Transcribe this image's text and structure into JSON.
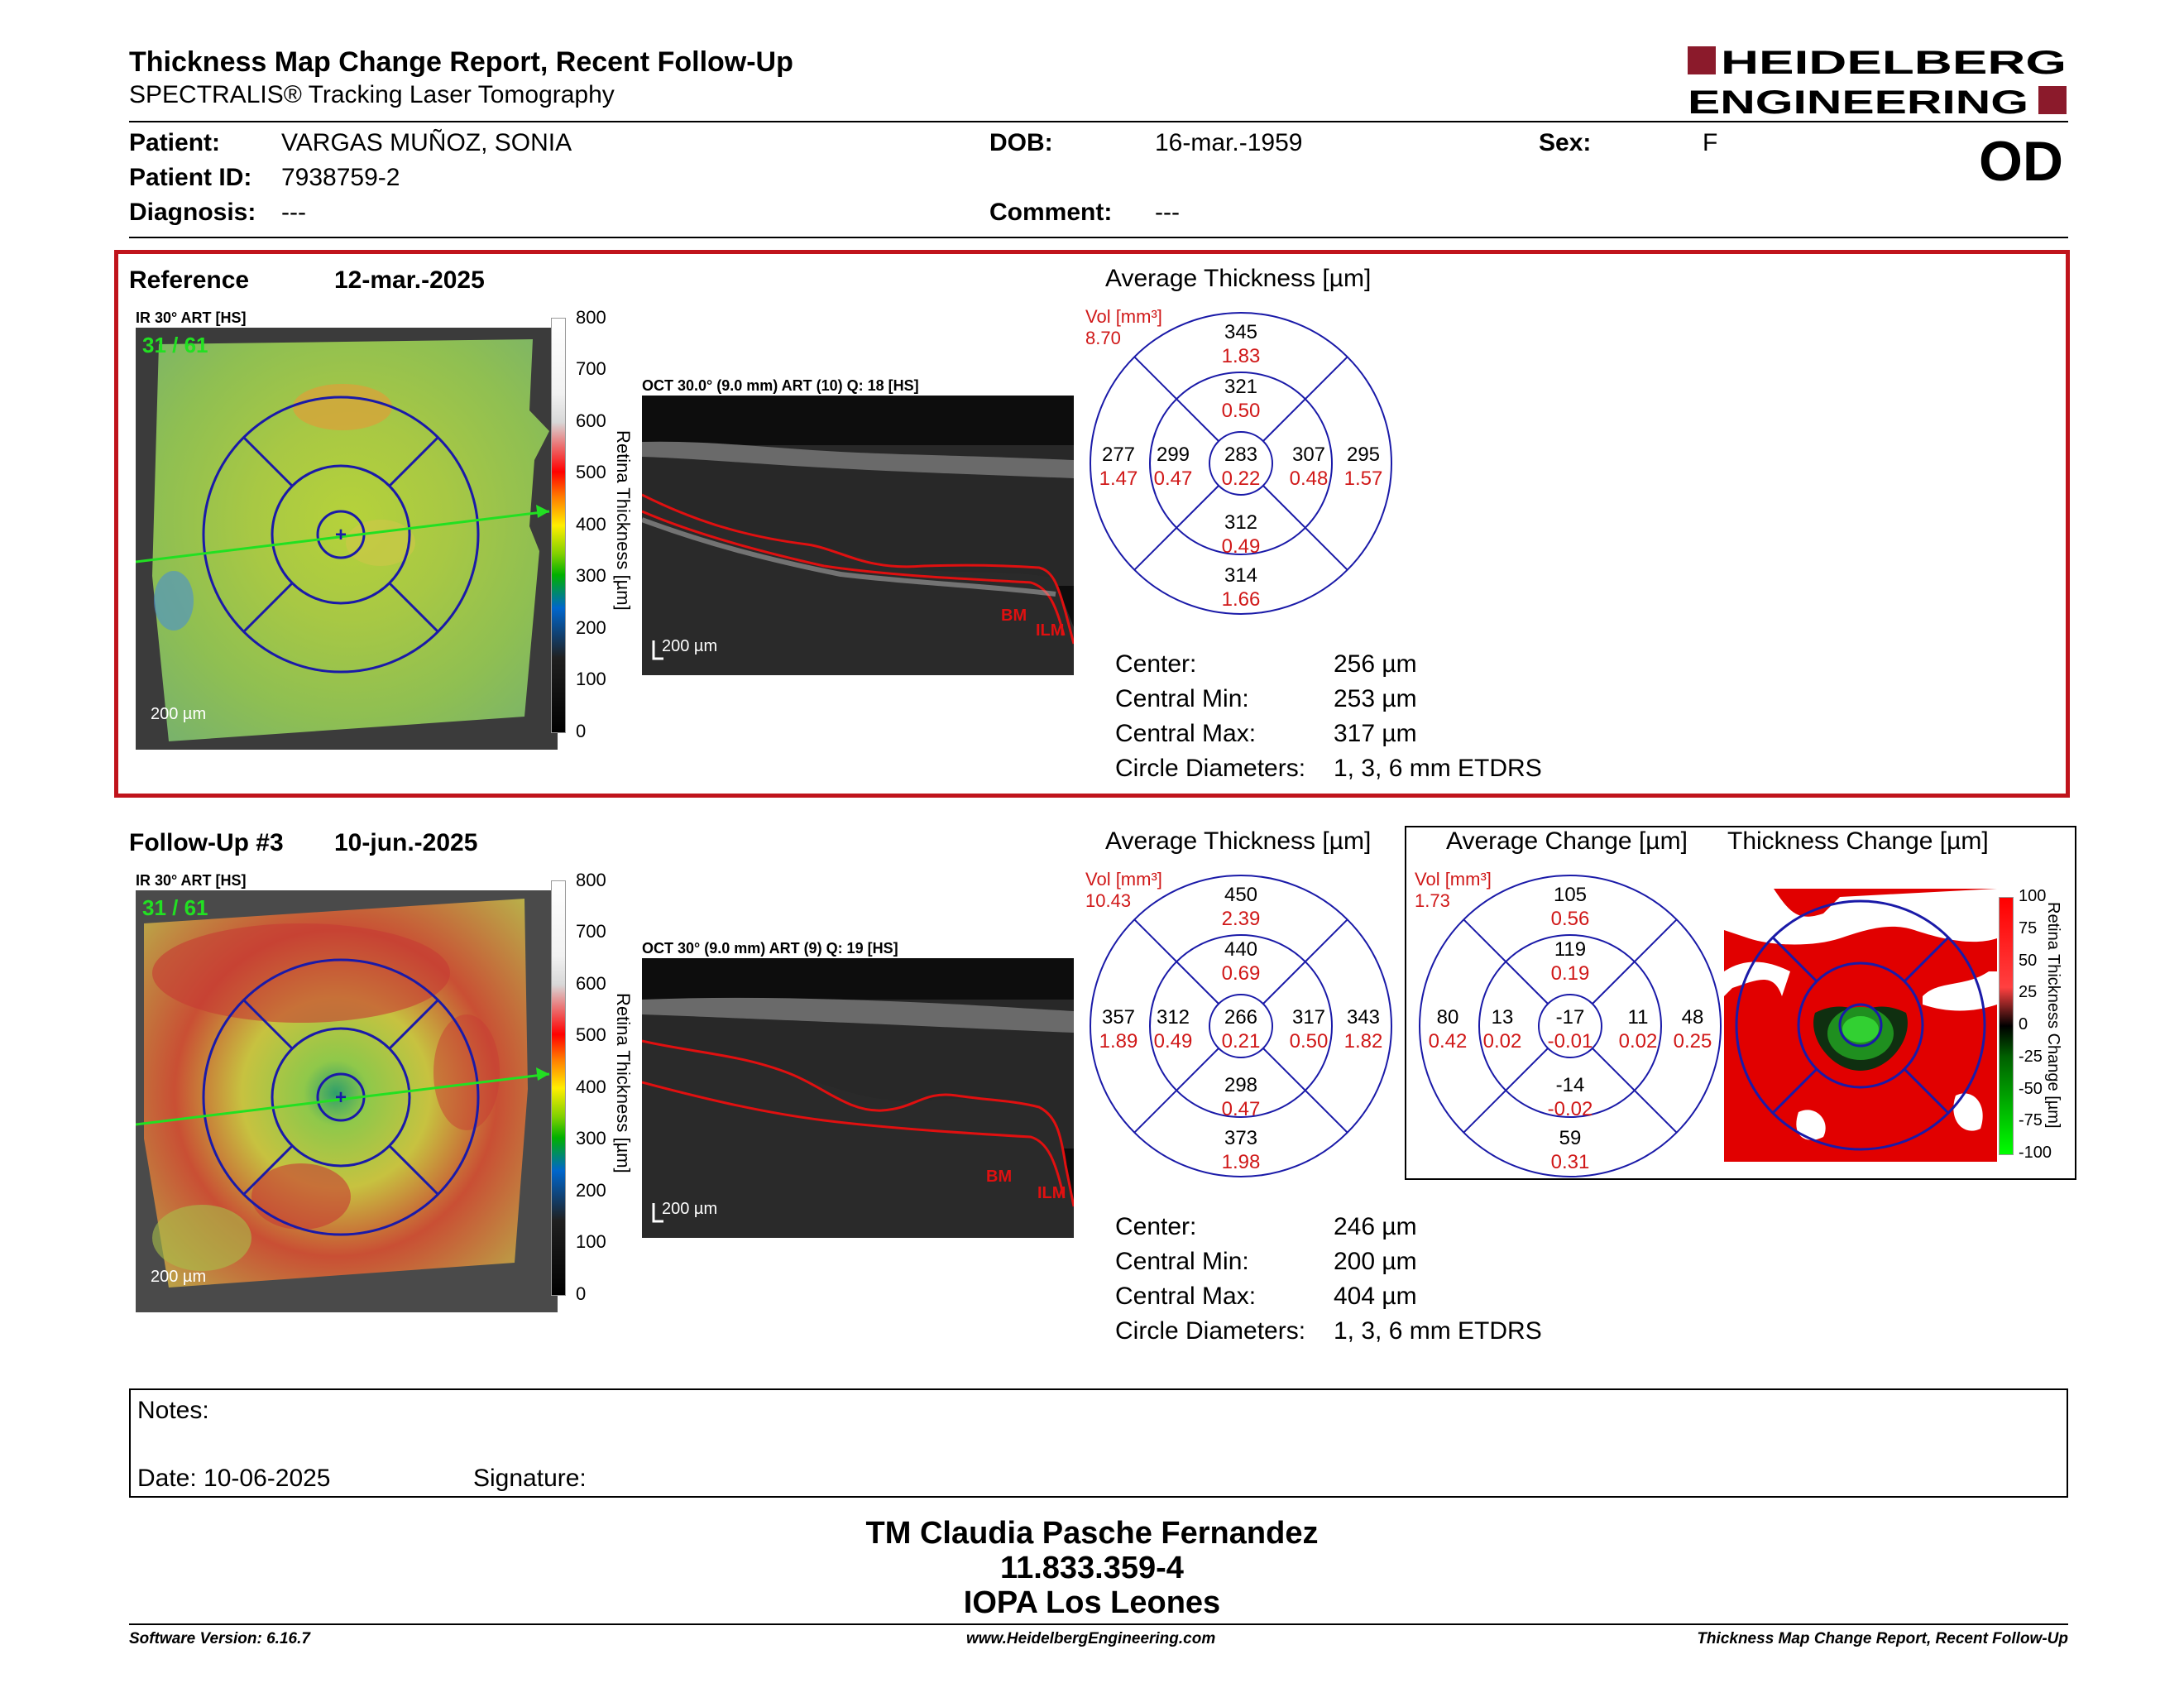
{
  "header": {
    "title": "Thickness Map Change Report, Recent Follow-Up",
    "subtitle": "SPECTRALIS® Tracking Laser Tomography",
    "logo_line1": "HEIDELBERG",
    "logo_line2": "ENGINEERING",
    "eye": "OD"
  },
  "patient": {
    "patient_label": "Patient:",
    "patient_value": "VARGAS MUÑOZ, SONIA",
    "id_label": "Patient ID:",
    "id_value": "7938759-2",
    "diagnosis_label": "Diagnosis:",
    "diagnosis_value": "---",
    "dob_label": "DOB:",
    "dob_value": "16-mar.-1959",
    "comment_label": "Comment:",
    "comment_value": "---",
    "sex_label": "Sex:",
    "sex_value": "F"
  },
  "reference": {
    "label": "Reference",
    "date": "12-mar.-2025",
    "ir_label": "IR 30° ART [HS]",
    "frame": "31 / 61",
    "scale": "200 µm",
    "oct_label": "OCT 30.0° (9.0 mm) ART (10) Q: 18 [HS]",
    "oct_scale": "200 µm",
    "bm": "BM",
    "ilm": "ILM",
    "colorbar_ticks": [
      "800",
      "700",
      "600",
      "500",
      "400",
      "300",
      "200",
      "100",
      "0"
    ],
    "colorbar_label": "Retina Thickness [µm]",
    "avg_title": "Average Thickness [µm]",
    "vol_label": "Vol [mm³]",
    "vol_value": "8.70",
    "etdrs": {
      "outer_sup": [
        "345",
        "1.83"
      ],
      "inner_sup": [
        "321",
        "0.50"
      ],
      "outer_temp": [
        "277",
        "1.47"
      ],
      "inner_temp": [
        "299",
        "0.47"
      ],
      "center": [
        "283",
        "0.22"
      ],
      "inner_nas": [
        "307",
        "0.48"
      ],
      "outer_nas": [
        "295",
        "1.57"
      ],
      "inner_inf": [
        "312",
        "0.49"
      ],
      "outer_inf": [
        "314",
        "1.66"
      ]
    },
    "stats": {
      "center_label": "Center:",
      "center_value": "256 µm",
      "min_label": "Central Min:",
      "min_value": "253 µm",
      "max_label": "Central Max:",
      "max_value": "317 µm",
      "diam_label": "Circle Diameters:",
      "diam_value": "1, 3, 6 mm ETDRS"
    }
  },
  "followup": {
    "label": "Follow-Up #3",
    "date": "10-jun.-2025",
    "ir_label": "IR 30° ART [HS]",
    "frame": "31 / 61",
    "scale": "200 µm",
    "oct_label": "OCT 30° (9.0 mm) ART (9) Q: 19 [HS]",
    "oct_scale": "200 µm",
    "bm": "BM",
    "ilm": "ILM",
    "colorbar_ticks": [
      "800",
      "700",
      "600",
      "500",
      "400",
      "300",
      "200",
      "100",
      "0"
    ],
    "colorbar_label": "Retina Thickness [µm]",
    "avg_title": "Average Thickness [µm]",
    "vol_label": "Vol [mm³]",
    "vol_value": "10.43",
    "etdrs": {
      "outer_sup": [
        "450",
        "2.39"
      ],
      "inner_sup": [
        "440",
        "0.69"
      ],
      "outer_temp": [
        "357",
        "1.89"
      ],
      "inner_temp": [
        "312",
        "0.49"
      ],
      "center": [
        "266",
        "0.21"
      ],
      "inner_nas": [
        "317",
        "0.50"
      ],
      "outer_nas": [
        "343",
        "1.82"
      ],
      "inner_inf": [
        "298",
        "0.47"
      ],
      "outer_inf": [
        "373",
        "1.98"
      ]
    },
    "stats": {
      "center_label": "Center:",
      "center_value": "246 µm",
      "min_label": "Central Min:",
      "min_value": "200 µm",
      "max_label": "Central Max:",
      "max_value": "404 µm",
      "diam_label": "Circle Diameters:",
      "diam_value": "1, 3, 6 mm ETDRS"
    }
  },
  "change": {
    "avg_title": "Average Change [µm]",
    "map_title": "Thickness Change [µm]",
    "vol_label": "Vol [mm³]",
    "vol_value": "1.73",
    "etdrs": {
      "outer_sup": [
        "105",
        "0.56"
      ],
      "inner_sup": [
        "119",
        "0.19"
      ],
      "outer_temp": [
        "80",
        "0.42"
      ],
      "inner_temp": [
        "13",
        "0.02"
      ],
      "center": [
        "-17",
        "-0.01"
      ],
      "inner_nas": [
        "11",
        "0.02"
      ],
      "outer_nas": [
        "48",
        "0.25"
      ],
      "inner_inf": [
        "-14",
        "-0.02"
      ],
      "outer_inf": [
        "59",
        "0.31"
      ]
    },
    "colorbar_ticks": [
      "100",
      "75",
      "50",
      "25",
      "0",
      "-25",
      "-50",
      "-75",
      "-100"
    ],
    "colorbar_label": "Retina Thickness Change [µm]"
  },
  "notes": {
    "notes_label": "Notes:",
    "date_label": "Date: 10-06-2025",
    "signature_label": "Signature:"
  },
  "signature_block": {
    "name": "TM Claudia Pasche Fernandez",
    "rut": "11.833.359-4",
    "institution": "IOPA Los Leones"
  },
  "footer": {
    "software": "Software Version: 6.16.7",
    "website": "www.HeidelbergEngineering.com",
    "report": "Thickness Map Change Report, Recent Follow-Up"
  },
  "colors": {
    "brand": "#8b1a2b",
    "ref_border": "#c0141c",
    "grid_blue": "#1a1aa8",
    "volume_red": "#d01818"
  }
}
